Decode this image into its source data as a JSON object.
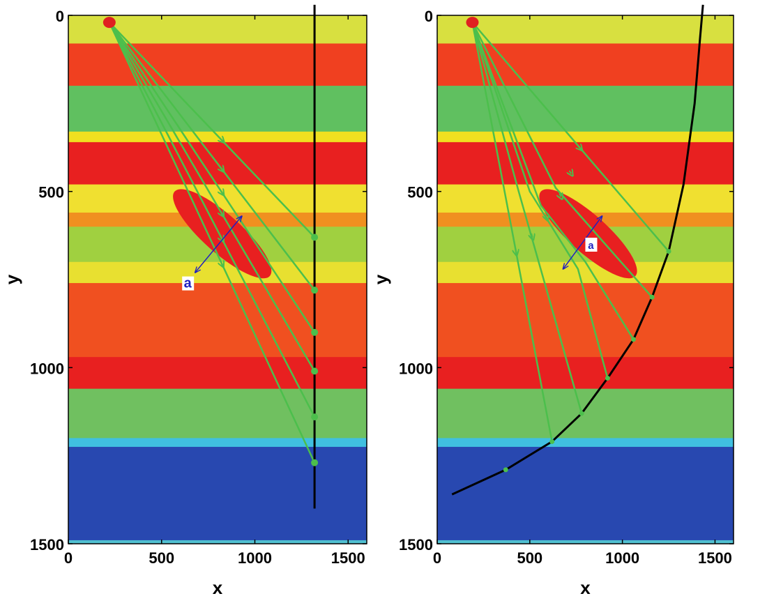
{
  "chart_data": [
    {
      "type": "heatmap",
      "xlabel": "x",
      "ylabel": "y",
      "xlim": [
        0,
        1600
      ],
      "ylim": [
        1500,
        0
      ],
      "xticks": [
        "0",
        "500",
        "1000",
        "1500"
      ],
      "yticks": [
        "0",
        "500",
        "1000",
        "1500"
      ],
      "bands": [
        {
          "y": [
            0,
            80
          ],
          "color": "#d8e040"
        },
        {
          "y": [
            80,
            200
          ],
          "color": "#f04020"
        },
        {
          "y": [
            200,
            330
          ],
          "color": "#60c060"
        },
        {
          "y": [
            330,
            360
          ],
          "color": "#f0e020"
        },
        {
          "y": [
            360,
            480
          ],
          "color": "#e82020"
        },
        {
          "y": [
            480,
            560
          ],
          "color": "#f0e030"
        },
        {
          "y": [
            560,
            600
          ],
          "color": "#f09020"
        },
        {
          "y": [
            600,
            700
          ],
          "color": "#a0d040"
        },
        {
          "y": [
            700,
            760
          ],
          "color": "#e8e030"
        },
        {
          "y": [
            760,
            970
          ],
          "color": "#f05020"
        },
        {
          "y": [
            970,
            1060
          ],
          "color": "#e82020"
        },
        {
          "y": [
            1060,
            1200
          ],
          "color": "#70c060"
        },
        {
          "y": [
            1200,
            1225
          ],
          "color": "#40c0e0"
        },
        {
          "y": [
            1225,
            1490
          ],
          "color": "#2848b0"
        },
        {
          "y": [
            1490,
            1500
          ],
          "color": "#50c0d0"
        }
      ],
      "anomaly": {
        "axis_start": [
          570,
          500
        ],
        "axis_end": [
          1080,
          740
        ],
        "half_width_x_units": 170,
        "color": "#e82020"
      },
      "source": [
        220,
        20
      ],
      "receiver_line": {
        "points": [
          [
            1320,
            -30
          ],
          [
            1320,
            1400
          ]
        ]
      },
      "receivers": [
        [
          1320,
          630
        ],
        [
          1320,
          780
        ],
        [
          1320,
          900
        ],
        [
          1320,
          1010
        ],
        [
          1320,
          1140
        ],
        [
          1320,
          1270
        ]
      ],
      "rays": [
        [
          [
            220,
            20
          ],
          [
            1320,
            630
          ]
        ],
        [
          [
            220,
            20
          ],
          [
            1320,
            780
          ]
        ],
        [
          [
            220,
            20
          ],
          [
            1320,
            900
          ]
        ],
        [
          [
            220,
            20
          ],
          [
            1320,
            1010
          ]
        ],
        [
          [
            220,
            20
          ],
          [
            1320,
            1140
          ]
        ],
        [
          [
            220,
            20
          ],
          [
            1320,
            1270
          ]
        ]
      ],
      "aperture": {
        "label": "a",
        "from": [
          680,
          730
        ],
        "to": [
          930,
          570
        ],
        "label_at": [
          640,
          765
        ]
      }
    },
    {
      "type": "heatmap",
      "xlabel": "x",
      "ylabel": "y",
      "xlim": [
        0,
        1600
      ],
      "ylim": [
        1500,
        0
      ],
      "xticks": [
        "0",
        "500",
        "1000",
        "1500"
      ],
      "yticks": [
        "0",
        "500",
        "1000",
        "1500"
      ],
      "bands": "same",
      "anomaly": {
        "axis_start": [
          560,
          500
        ],
        "axis_end": [
          1070,
          740
        ],
        "half_width_x_units": 170,
        "color": "#e82020"
      },
      "source": [
        190,
        20
      ],
      "receiver_line": {
        "points": [
          [
            80,
            1360
          ],
          [
            370,
            1290
          ],
          [
            620,
            1210
          ],
          [
            780,
            1130
          ],
          [
            920,
            1030
          ],
          [
            1060,
            920
          ],
          [
            1160,
            800
          ],
          [
            1250,
            670
          ],
          [
            1330,
            480
          ],
          [
            1390,
            250
          ],
          [
            1420,
            60
          ],
          [
            1435,
            -30
          ]
        ]
      },
      "receivers": [
        [
          1250,
          670
        ],
        [
          1160,
          800
        ],
        [
          1060,
          920
        ],
        [
          920,
          1030
        ],
        [
          780,
          1130
        ],
        [
          620,
          1210
        ],
        [
          370,
          1290
        ]
      ],
      "rays": [
        [
          [
            190,
            20
          ],
          [
            1250,
            670
          ]
        ],
        [
          [
            190,
            20
          ],
          [
            640,
            490
          ],
          [
            1160,
            800
          ]
        ],
        [
          [
            190,
            20
          ],
          [
            560,
            540
          ],
          [
            800,
            700
          ],
          [
            1060,
            920
          ]
        ],
        [
          [
            190,
            20
          ],
          [
            500,
            500
          ],
          [
            760,
            720
          ],
          [
            920,
            1030
          ]
        ],
        [
          [
            190,
            20
          ],
          [
            440,
            500
          ],
          [
            780,
            1130
          ]
        ],
        [
          [
            190,
            20
          ],
          [
            400,
            600
          ],
          [
            620,
            1210
          ]
        ]
      ],
      "aperture": {
        "label": "a",
        "from": [
          680,
          720
        ],
        "to": [
          890,
          570
        ],
        "label_at": [
          830,
          655
        ]
      }
    }
  ],
  "colors": {
    "ray": "#4cbf4c",
    "source": "#e02020",
    "receiver_line": "#000000",
    "aperture": "#2020c0"
  }
}
